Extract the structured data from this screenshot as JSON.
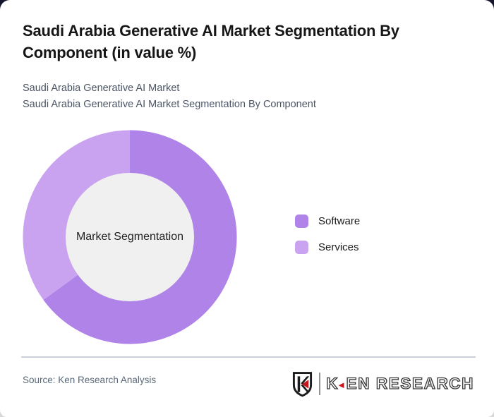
{
  "header": {
    "title": "Saudi Arabia Generative AI Market Segmentation By Component (in value %)",
    "subtitle_lines": [
      "Saudi Arabia Generative AI Market",
      "Saudi Arabia Generative AI Market Segmentation By Component"
    ]
  },
  "chart_data": {
    "type": "pie",
    "variant": "donut",
    "title": "Saudi Arabia Generative AI Market Segmentation By Component (in value %)",
    "center_label": "Market Segmentation",
    "categories": [
      "Software",
      "Services"
    ],
    "values": [
      65,
      35
    ],
    "unit": "% of market value",
    "colors": [
      "#b083e8",
      "#c9a2f0"
    ],
    "inner_circle_color": "#f0f0f0",
    "start_angle_deg": 0,
    "direction": "clockwise",
    "legend_position": "right",
    "data_labels_shown": false
  },
  "legend": {
    "items": [
      {
        "label": "Software",
        "color": "#b083e8"
      },
      {
        "label": "Services",
        "color": "#c9a2f0"
      }
    ]
  },
  "footer": {
    "source": "Source: Ken Research Analysis",
    "logo": {
      "k": "K",
      "triangle": "◄",
      "rest": "EN RESEARCH",
      "full": "KEN RESEARCH",
      "red": "#c4161c",
      "dark": "#383838"
    }
  }
}
